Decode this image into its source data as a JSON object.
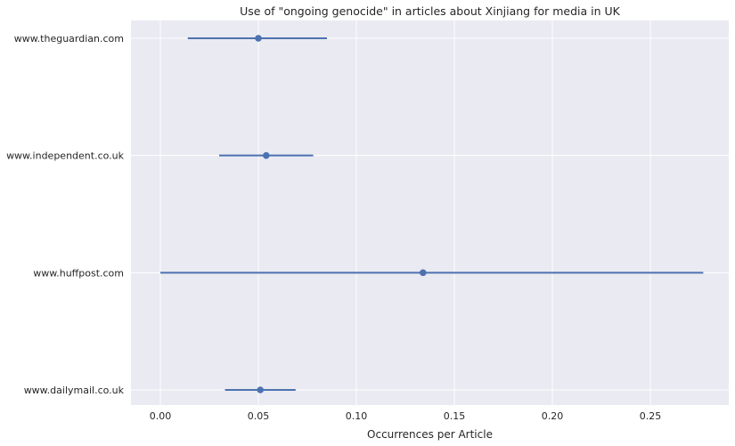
{
  "chart_data": {
    "type": "scatter",
    "title": "Use of \"ongoing genocide\" in articles about Xinjiang for media in UK",
    "xlabel": "Occurrences per Article",
    "ylabel": "",
    "xlim": [
      -0.015,
      0.29
    ],
    "x_ticks": [
      0.0,
      0.05,
      0.1,
      0.15,
      0.2,
      0.25
    ],
    "x_tick_labels": [
      "0.00",
      "0.05",
      "0.10",
      "0.15",
      "0.20",
      "0.25"
    ],
    "grid": true,
    "categories": [
      "www.theguardian.com",
      "www.independent.co.uk",
      "www.huffpost.com",
      "www.dailymail.co.uk"
    ],
    "series": [
      {
        "points": [
          {
            "category": "www.theguardian.com",
            "x": 0.05,
            "err_low": 0.014,
            "err_high": 0.085
          },
          {
            "category": "www.independent.co.uk",
            "x": 0.054,
            "err_low": 0.03,
            "err_high": 0.078
          },
          {
            "category": "www.huffpost.com",
            "x": 0.134,
            "err_low": 0.0,
            "err_high": 0.277
          },
          {
            "category": "www.dailymail.co.uk",
            "x": 0.051,
            "err_low": 0.033,
            "err_high": 0.069
          }
        ]
      }
    ],
    "colors": {
      "background": "#eaeaf2",
      "grid": "#ffffff",
      "series": "#4c72b0",
      "text": "#262626"
    }
  }
}
